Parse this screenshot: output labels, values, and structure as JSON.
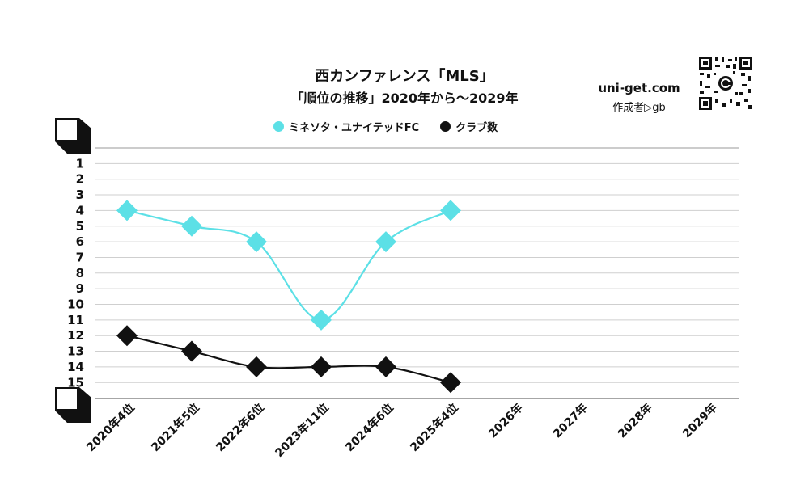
{
  "header": {
    "title": "西カンファレンス「MLS」",
    "subtitle": "「順位の推移」2020年から～2029年"
  },
  "brand": {
    "site": "uni-get.com",
    "author": "作成者▷gb"
  },
  "chart_data": {
    "type": "line",
    "categories": [
      "2020年4位",
      "2021年5位",
      "2022年6位",
      "2023年11位",
      "2024年6位",
      "2025年4位",
      "2026年",
      "2027年",
      "2028年",
      "2029年"
    ],
    "y_tick_labels": [
      "1",
      "2",
      "3",
      "4",
      "5",
      "6",
      "7",
      "8",
      "9",
      "10",
      "11",
      "12",
      "13",
      "14",
      "15"
    ],
    "ylim": [
      0,
      16
    ],
    "y_inverted": true,
    "grid": true,
    "legend_position": "top",
    "series": [
      {
        "name": "ミネソタ・ユナイテッドFC",
        "color": "#5ce0e6",
        "values": [
          4,
          5,
          6,
          11,
          6,
          4,
          null,
          null,
          null,
          null
        ]
      },
      {
        "name": "クラブ数",
        "color": "#111111",
        "values": [
          12,
          13,
          14,
          14,
          14,
          15,
          null,
          null,
          null,
          null
        ]
      }
    ]
  }
}
